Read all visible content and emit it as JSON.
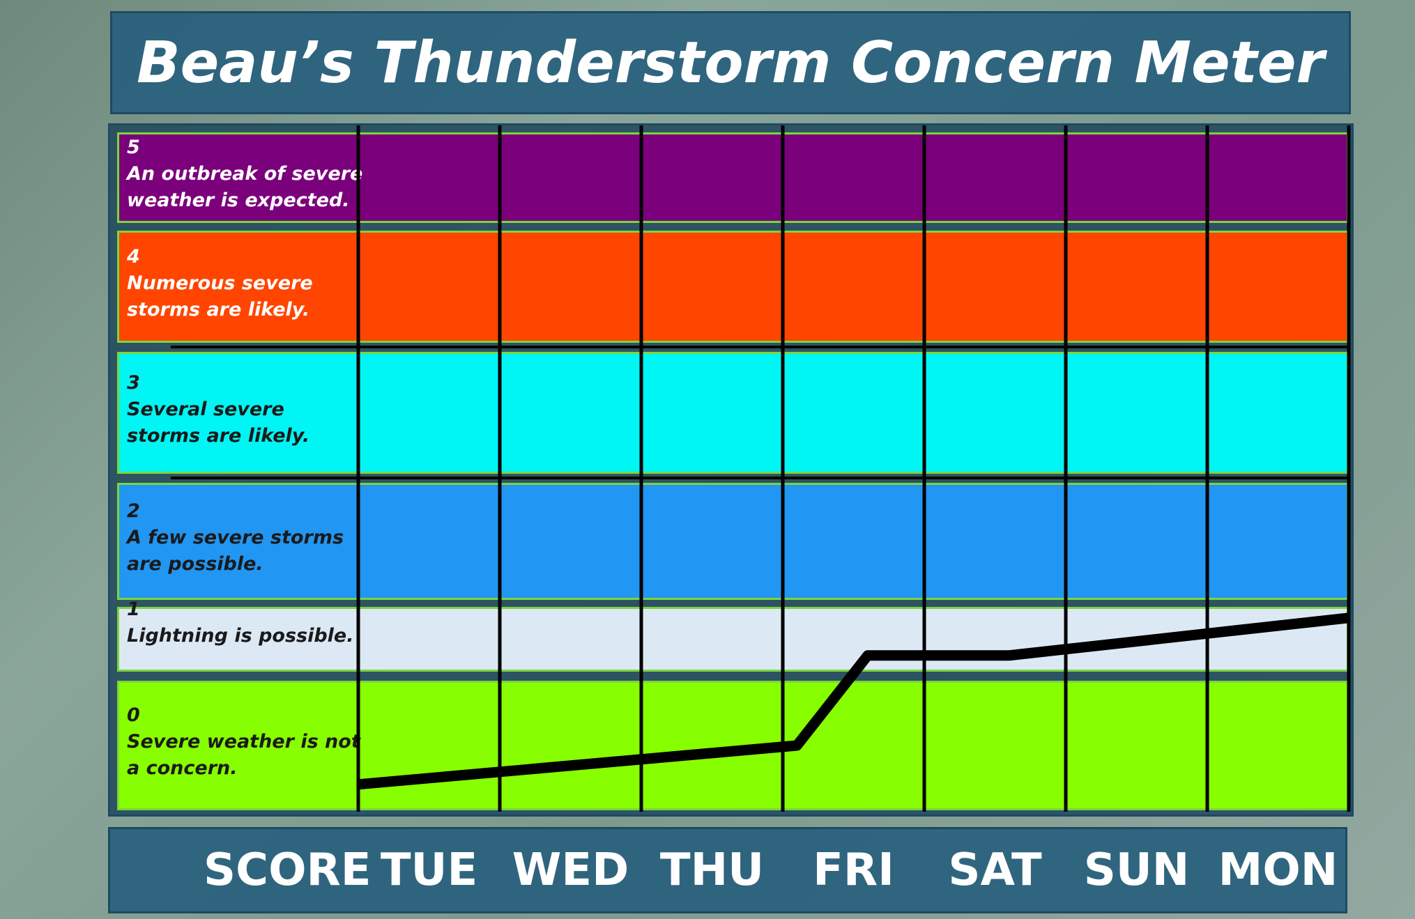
{
  "chart_data": {
    "type": "line",
    "title": "Beau’s Thunderstorm Concern Meter",
    "score_label": "SCORE",
    "categories": [
      "TUE",
      "WED",
      "THU",
      "FRI",
      "SAT",
      "SUN",
      "MON"
    ],
    "levels": [
      {
        "score": 0,
        "description": "Severe weather is not a concern.",
        "color": "#88ff00",
        "text_color": "#1a1a1a"
      },
      {
        "score": 1,
        "description": "Lightning is possible.",
        "color": "#dce9f5",
        "text_color": "#1a1a1a"
      },
      {
        "score": 2,
        "description": "A few severe storms are possible.",
        "color": "#2196f3",
        "text_color": "#1a1a1a"
      },
      {
        "score": 3,
        "description": "Several severe storms are likely.",
        "color": "#00f5f5",
        "text_color": "#1a1a1a"
      },
      {
        "score": 4,
        "description": "Numerous severe storms are likely.",
        "color": "#ff4500",
        "text_color": "#ffffff"
      },
      {
        "score": 5,
        "description": "An outbreak of severe weather is expected.",
        "color": "#7b007b",
        "text_color": "#ffffff"
      }
    ],
    "xlim": [
      0,
      7
    ],
    "series": [
      {
        "color": "#000000",
        "x": [
          0,
          3.1,
          3.6,
          4.6,
          7
        ],
        "values": [
          -0.3,
          0,
          0.75,
          0.75,
          1.33
        ]
      }
    ]
  }
}
